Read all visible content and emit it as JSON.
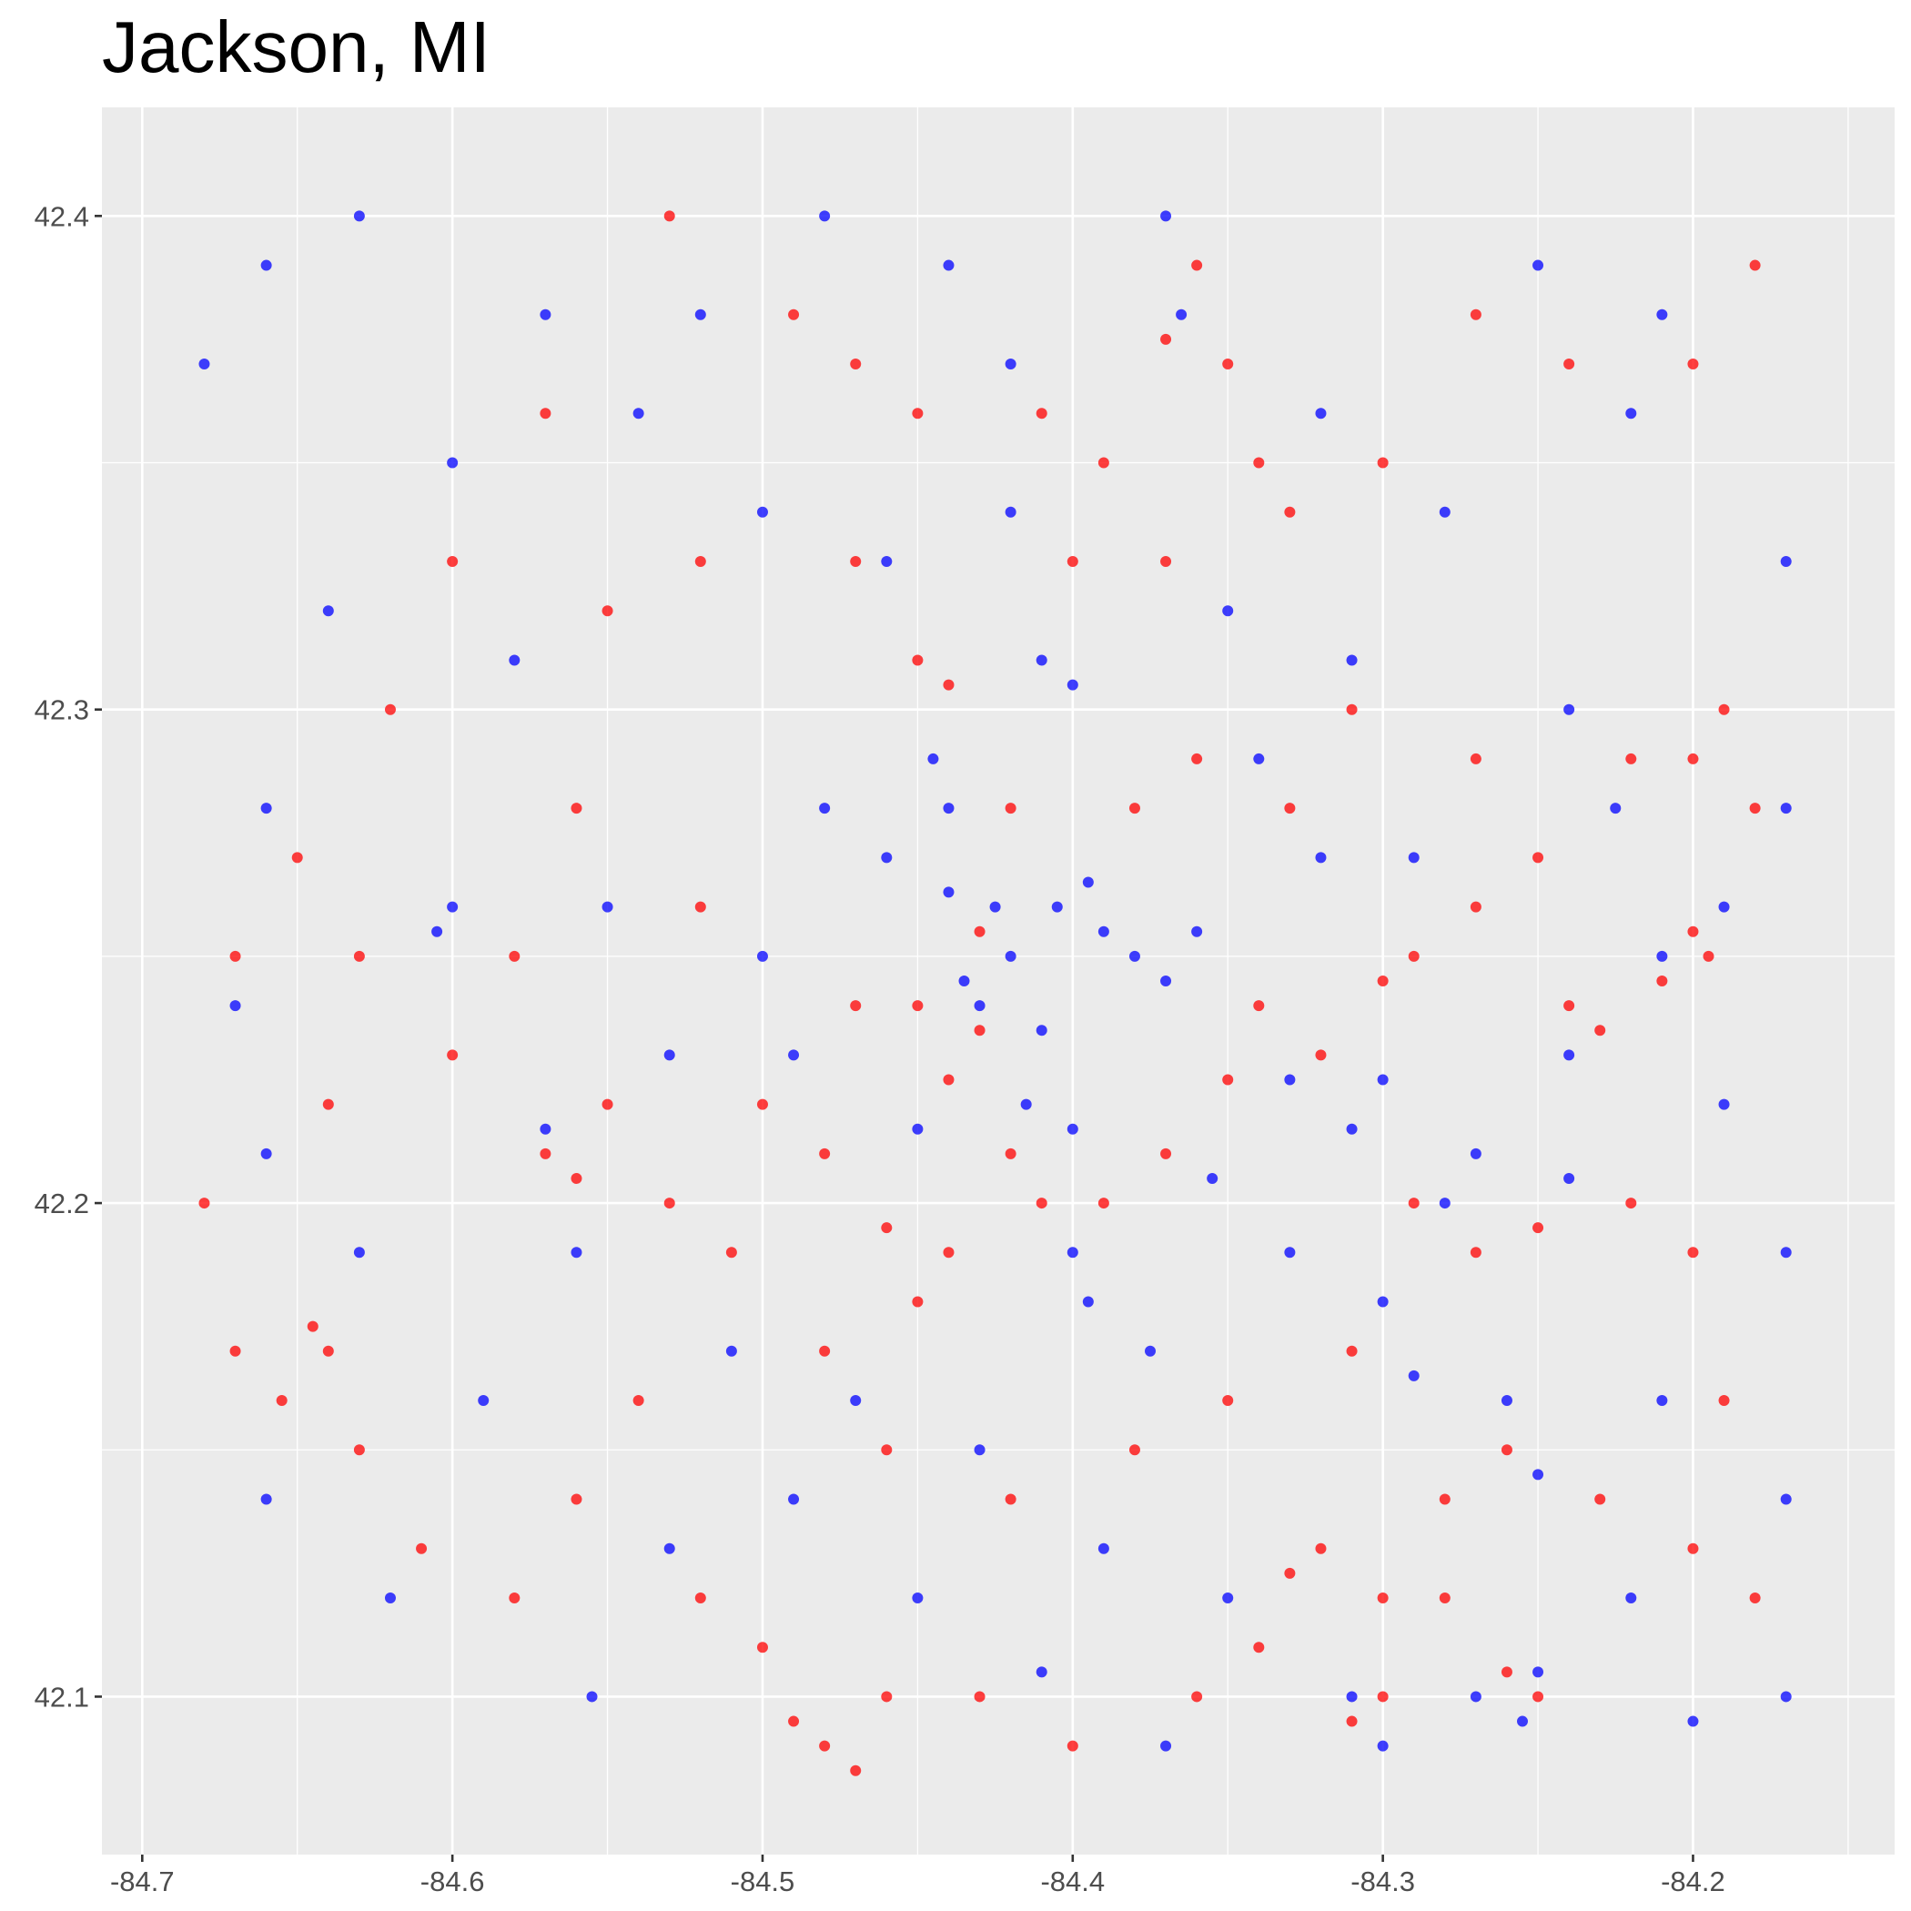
{
  "chart_data": {
    "type": "scatter",
    "title": "Jackson, MI",
    "xlabel": "",
    "ylabel": "",
    "xlim": [
      -84.713,
      -84.135
    ],
    "ylim": [
      42.068,
      42.422
    ],
    "x_ticks": [
      -84.7,
      -84.6,
      -84.5,
      -84.4,
      -84.3,
      -84.2
    ],
    "x_tick_labels": [
      "-84.7",
      "-84.6",
      "-84.5",
      "-84.4",
      "-84.3",
      "-84.2"
    ],
    "y_ticks": [
      42.1,
      42.2,
      42.3,
      42.4
    ],
    "y_tick_labels": [
      "42.1",
      "42.2",
      "42.3",
      "42.4"
    ],
    "grid": true,
    "legend": "none",
    "colors": {
      "panel": "#ebebeb",
      "grid": "#ffffff",
      "series_a": "#ff0000",
      "series_b": "#0000ff"
    },
    "series": [
      {
        "color": "#0000ff",
        "values": [
          [
            -84.42,
            42.25
          ],
          [
            -84.43,
            42.24
          ],
          [
            -84.41,
            42.235
          ],
          [
            -84.405,
            42.26
          ],
          [
            -84.39,
            42.255
          ],
          [
            -84.38,
            42.25
          ],
          [
            -84.425,
            42.26
          ],
          [
            -84.415,
            42.22
          ],
          [
            -84.4,
            42.215
          ],
          [
            -84.435,
            42.245
          ],
          [
            -84.44,
            42.263
          ],
          [
            -84.395,
            42.265
          ],
          [
            -84.37,
            42.245
          ],
          [
            -84.36,
            42.255
          ],
          [
            -84.41,
            42.31
          ],
          [
            -84.4,
            42.305
          ],
          [
            -84.445,
            42.29
          ],
          [
            -84.44,
            42.28
          ],
          [
            -84.42,
            42.34
          ],
          [
            -84.37,
            42.4
          ],
          [
            -84.365,
            42.38
          ],
          [
            -84.29,
            42.27
          ],
          [
            -84.3,
            42.225
          ],
          [
            -84.31,
            42.215
          ],
          [
            -84.25,
            42.105
          ],
          [
            -84.255,
            42.095
          ],
          [
            -84.2,
            42.095
          ],
          [
            -84.555,
            42.1
          ],
          [
            -84.6,
            42.26
          ],
          [
            -84.605,
            42.255
          ],
          [
            -84.68,
            42.37
          ],
          [
            -84.48,
            42.28
          ],
          [
            -84.46,
            42.27
          ],
          [
            -84.4,
            42.19
          ],
          [
            -84.395,
            42.18
          ],
          [
            -84.375,
            42.17
          ],
          [
            -84.53,
            42.23
          ],
          [
            -84.49,
            42.23
          ],
          [
            -84.33,
            42.225
          ],
          [
            -84.32,
            42.27
          ],
          [
            -84.28,
            42.34
          ],
          [
            -84.22,
            42.36
          ],
          [
            -84.17,
            42.33
          ],
          [
            -84.17,
            42.28
          ],
          [
            -84.17,
            42.19
          ],
          [
            -84.17,
            42.14
          ],
          [
            -84.17,
            42.1
          ],
          [
            -84.66,
            42.21
          ],
          [
            -84.66,
            42.14
          ],
          [
            -84.62,
            42.12
          ],
          [
            -84.58,
            42.31
          ],
          [
            -84.54,
            42.36
          ],
          [
            -84.52,
            42.38
          ],
          [
            -84.48,
            42.4
          ],
          [
            -84.44,
            42.39
          ],
          [
            -84.42,
            42.37
          ],
          [
            -84.35,
            42.32
          ],
          [
            -84.32,
            42.36
          ],
          [
            -84.25,
            42.39
          ],
          [
            -84.21,
            42.38
          ],
          [
            -84.28,
            42.2
          ],
          [
            -84.29,
            42.165
          ],
          [
            -84.26,
            42.16
          ],
          [
            -84.25,
            42.145
          ],
          [
            -84.21,
            42.16
          ],
          [
            -84.19,
            42.22
          ],
          [
            -84.225,
            42.28
          ],
          [
            -84.24,
            42.3
          ],
          [
            -84.34,
            42.29
          ],
          [
            -84.31,
            42.31
          ],
          [
            -84.46,
            42.33
          ],
          [
            -84.5,
            42.34
          ],
          [
            -84.56,
            42.19
          ],
          [
            -84.57,
            42.215
          ],
          [
            -84.51,
            42.17
          ],
          [
            -84.47,
            42.16
          ],
          [
            -84.43,
            42.15
          ],
          [
            -84.39,
            42.13
          ],
          [
            -84.35,
            42.12
          ],
          [
            -84.31,
            42.1
          ],
          [
            -84.37,
            42.09
          ],
          [
            -84.41,
            42.105
          ],
          [
            -84.45,
            42.12
          ],
          [
            -84.49,
            42.14
          ],
          [
            -84.53,
            42.13
          ],
          [
            -84.59,
            42.16
          ],
          [
            -84.63,
            42.19
          ],
          [
            -84.67,
            42.24
          ],
          [
            -84.66,
            42.28
          ],
          [
            -84.64,
            42.32
          ],
          [
            -84.6,
            42.35
          ],
          [
            -84.57,
            42.38
          ],
          [
            -84.63,
            42.4
          ],
          [
            -84.66,
            42.39
          ],
          [
            -84.55,
            42.26
          ],
          [
            -84.5,
            42.25
          ],
          [
            -84.45,
            42.215
          ],
          [
            -84.355,
            42.205
          ],
          [
            -84.33,
            42.19
          ],
          [
            -84.3,
            42.18
          ],
          [
            -84.27,
            42.21
          ],
          [
            -84.24,
            42.23
          ],
          [
            -84.21,
            42.25
          ],
          [
            -84.19,
            42.26
          ],
          [
            -84.24,
            42.205
          ],
          [
            -84.22,
            42.12
          ],
          [
            -84.27,
            42.1
          ],
          [
            -84.3,
            42.09
          ]
        ]
      },
      {
        "color": "#ff0000",
        "values": [
          [
            -84.43,
            42.235
          ],
          [
            -84.45,
            42.24
          ],
          [
            -84.44,
            42.225
          ],
          [
            -84.42,
            42.21
          ],
          [
            -84.41,
            42.2
          ],
          [
            -84.39,
            42.2
          ],
          [
            -84.44,
            42.19
          ],
          [
            -84.46,
            42.195
          ],
          [
            -84.45,
            42.18
          ],
          [
            -84.47,
            42.24
          ],
          [
            -84.43,
            42.255
          ],
          [
            -84.45,
            42.31
          ],
          [
            -84.44,
            42.305
          ],
          [
            -84.37,
            42.21
          ],
          [
            -84.35,
            42.225
          ],
          [
            -84.34,
            42.24
          ],
          [
            -84.32,
            42.23
          ],
          [
            -84.36,
            42.39
          ],
          [
            -84.37,
            42.375
          ],
          [
            -84.35,
            42.37
          ],
          [
            -84.645,
            42.175
          ],
          [
            -84.64,
            42.17
          ],
          [
            -84.655,
            42.16
          ],
          [
            -84.49,
            42.095
          ],
          [
            -84.48,
            42.09
          ],
          [
            -84.47,
            42.085
          ],
          [
            -84.25,
            42.1
          ],
          [
            -84.26,
            42.105
          ],
          [
            -84.3,
            42.1
          ],
          [
            -84.31,
            42.095
          ],
          [
            -84.3,
            42.12
          ],
          [
            -84.28,
            42.12
          ],
          [
            -84.33,
            42.125
          ],
          [
            -84.55,
            42.22
          ],
          [
            -84.57,
            42.21
          ],
          [
            -84.56,
            42.205
          ],
          [
            -84.53,
            42.2
          ],
          [
            -84.51,
            42.19
          ],
          [
            -84.5,
            42.22
          ],
          [
            -84.48,
            42.21
          ],
          [
            -84.2,
            42.255
          ],
          [
            -84.21,
            42.245
          ],
          [
            -84.195,
            42.25
          ],
          [
            -84.24,
            42.24
          ],
          [
            -84.23,
            42.235
          ],
          [
            -84.29,
            42.25
          ],
          [
            -84.3,
            42.245
          ],
          [
            -84.27,
            42.26
          ],
          [
            -84.22,
            42.29
          ],
          [
            -84.2,
            42.29
          ],
          [
            -84.18,
            42.28
          ],
          [
            -84.19,
            42.3
          ],
          [
            -84.33,
            42.28
          ],
          [
            -84.36,
            42.29
          ],
          [
            -84.38,
            42.28
          ],
          [
            -84.42,
            42.28
          ],
          [
            -84.47,
            42.33
          ],
          [
            -84.45,
            42.36
          ],
          [
            -84.41,
            42.36
          ],
          [
            -84.39,
            42.35
          ],
          [
            -84.33,
            42.34
          ],
          [
            -84.3,
            42.35
          ],
          [
            -84.27,
            42.38
          ],
          [
            -84.24,
            42.37
          ],
          [
            -84.2,
            42.37
          ],
          [
            -84.18,
            42.39
          ],
          [
            -84.52,
            42.33
          ],
          [
            -84.55,
            42.32
          ],
          [
            -84.6,
            42.33
          ],
          [
            -84.62,
            42.3
          ],
          [
            -84.65,
            42.27
          ],
          [
            -84.67,
            42.25
          ],
          [
            -84.68,
            42.2
          ],
          [
            -84.67,
            42.17
          ],
          [
            -84.63,
            42.15
          ],
          [
            -84.61,
            42.13
          ],
          [
            -84.58,
            42.12
          ],
          [
            -84.56,
            42.14
          ],
          [
            -84.54,
            42.16
          ],
          [
            -84.52,
            42.12
          ],
          [
            -84.5,
            42.11
          ],
          [
            -84.46,
            42.1
          ],
          [
            -84.43,
            42.1
          ],
          [
            -84.4,
            42.09
          ],
          [
            -84.36,
            42.1
          ],
          [
            -84.34,
            42.11
          ],
          [
            -84.32,
            42.13
          ],
          [
            -84.28,
            42.14
          ],
          [
            -84.26,
            42.15
          ],
          [
            -84.23,
            42.14
          ],
          [
            -84.2,
            42.13
          ],
          [
            -84.18,
            42.12
          ],
          [
            -84.19,
            42.16
          ],
          [
            -84.2,
            42.19
          ],
          [
            -84.22,
            42.2
          ],
          [
            -84.25,
            42.195
          ],
          [
            -84.27,
            42.19
          ],
          [
            -84.29,
            42.2
          ],
          [
            -84.31,
            42.17
          ],
          [
            -84.35,
            42.16
          ],
          [
            -84.38,
            42.15
          ],
          [
            -84.42,
            42.14
          ],
          [
            -84.46,
            42.15
          ],
          [
            -84.48,
            42.17
          ],
          [
            -84.52,
            42.26
          ],
          [
            -84.56,
            42.28
          ],
          [
            -84.58,
            42.25
          ],
          [
            -84.6,
            42.23
          ],
          [
            -84.64,
            42.22
          ],
          [
            -84.63,
            42.25
          ],
          [
            -84.57,
            42.36
          ],
          [
            -84.53,
            42.4
          ],
          [
            -84.49,
            42.38
          ],
          [
            -84.47,
            42.37
          ],
          [
            -84.4,
            42.33
          ],
          [
            -84.37,
            42.33
          ],
          [
            -84.34,
            42.35
          ],
          [
            -84.31,
            42.3
          ],
          [
            -84.27,
            42.29
          ],
          [
            -84.25,
            42.27
          ]
        ]
      }
    ]
  }
}
